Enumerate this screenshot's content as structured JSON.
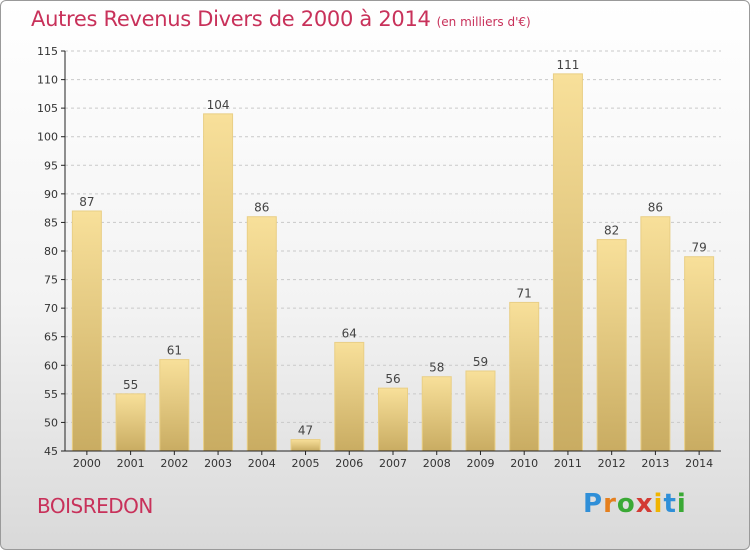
{
  "title": "Autres Revenus Divers de 2000 à 2014",
  "unit": "(en milliers d'€)",
  "city": "BOISREDON",
  "logo": "Proxiti",
  "colors": {
    "title": "#c8315a",
    "bar_top": "#f8e09a",
    "bar_bottom": "#c9ac62",
    "bar_edge": "#e9cf86",
    "axis": "#222222",
    "grid": "#c9c9c9"
  },
  "chart_data": {
    "type": "bar",
    "categories": [
      "2000",
      "2001",
      "2002",
      "2003",
      "2004",
      "2005",
      "2006",
      "2007",
      "2008",
      "2009",
      "2010",
      "2011",
      "2012",
      "2013",
      "2014"
    ],
    "values": [
      87,
      55,
      61,
      104,
      86,
      47,
      64,
      56,
      58,
      59,
      71,
      111,
      82,
      86,
      79
    ],
    "title": "Autres Revenus Divers de 2000 à 2014",
    "xlabel": "",
    "ylabel": "",
    "ylim": [
      45,
      115
    ],
    "yticks": [
      45,
      50,
      55,
      60,
      65,
      70,
      75,
      80,
      85,
      90,
      95,
      100,
      105,
      110,
      115
    ],
    "grid": true,
    "data_labels": true
  }
}
